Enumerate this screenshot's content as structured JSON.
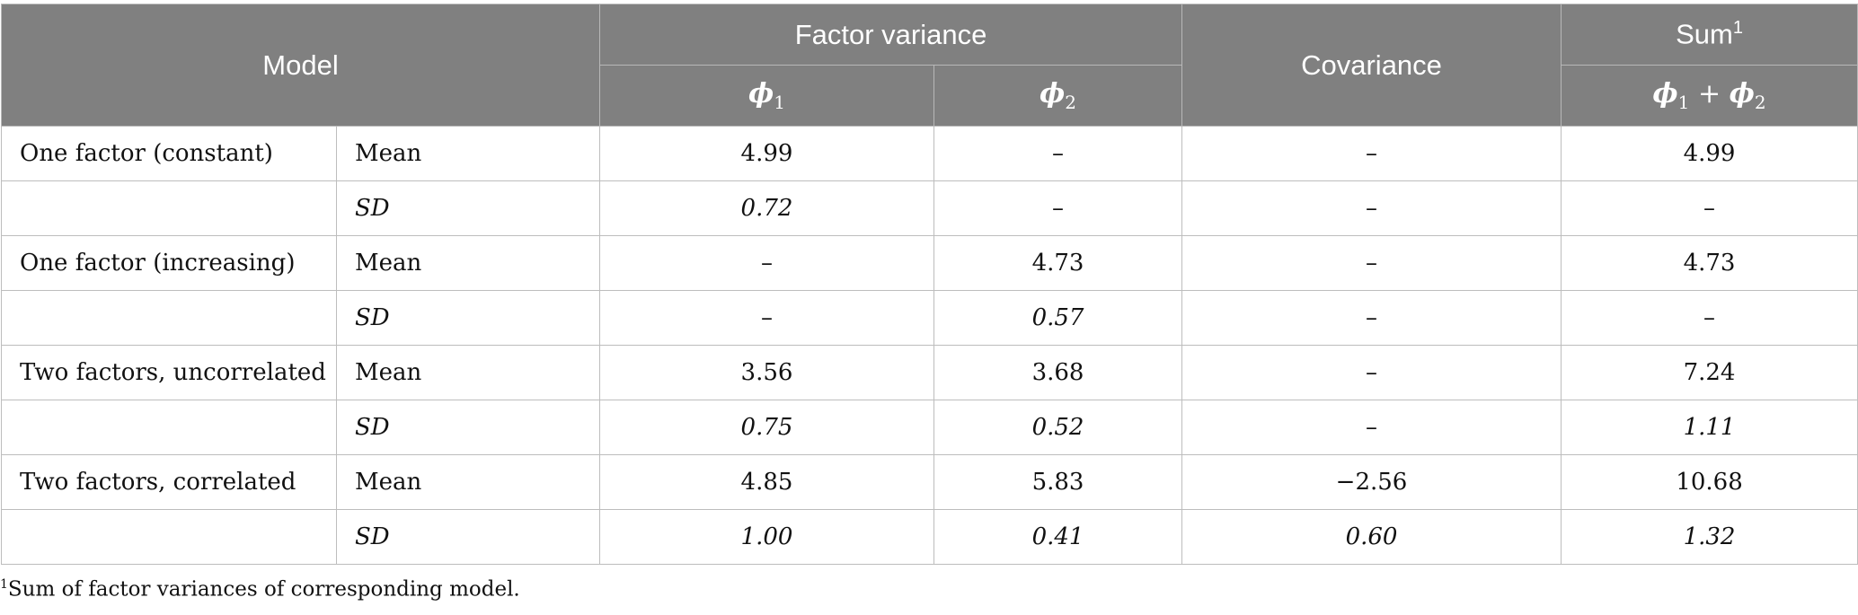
{
  "header": {
    "model": "Model",
    "factor_variance": "Factor variance",
    "covariance": "Covariance",
    "sum": "Sum",
    "sum_note_mark": "1",
    "phi": "ϕ",
    "phi1_sub": "1",
    "phi2_sub": "2",
    "plus": " + "
  },
  "rows": [
    {
      "model": "One factor (constant)",
      "stat": "Mean",
      "phi1": "4.99",
      "phi2": "–",
      "cov": "–",
      "sum": "4.99"
    },
    {
      "model": "",
      "stat": "SD",
      "phi1": "0.72",
      "phi2": "–",
      "cov": "–",
      "sum": "–"
    },
    {
      "model": "One factor (increasing)",
      "stat": "Mean",
      "phi1": "–",
      "phi2": "4.73",
      "cov": "–",
      "sum": "4.73"
    },
    {
      "model": "",
      "stat": "SD",
      "phi1": "–",
      "phi2": "0.57",
      "cov": "–",
      "sum": "–"
    },
    {
      "model": "Two factors, uncorrelated",
      "stat": "Mean",
      "phi1": "3.56",
      "phi2": "3.68",
      "cov": "–",
      "sum": "7.24"
    },
    {
      "model": "",
      "stat": "SD",
      "phi1": "0.75",
      "phi2": "0.52",
      "cov": "–",
      "sum": "1.11"
    },
    {
      "model": "Two factors, correlated",
      "stat": "Mean",
      "phi1": "4.85",
      "phi2": "5.83",
      "cov": "−2.56",
      "sum": "10.68"
    },
    {
      "model": "",
      "stat": "SD",
      "phi1": "1.00",
      "phi2": "0.41",
      "cov": "0.60",
      "sum": "1.32"
    }
  ],
  "footnote": {
    "mark": "1",
    "text": "Sum of factor variances of corresponding model."
  }
}
